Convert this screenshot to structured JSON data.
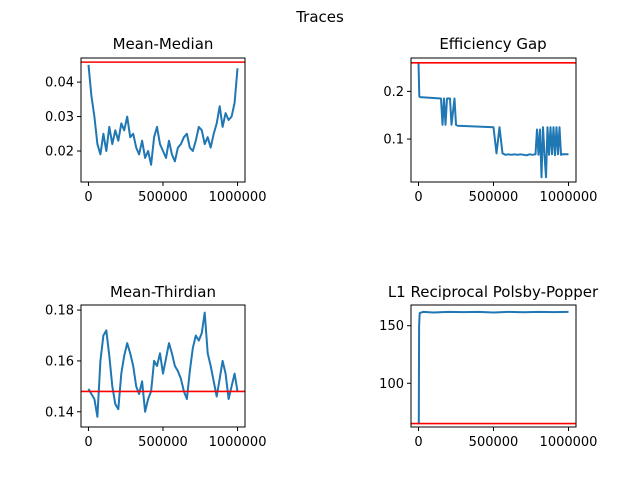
{
  "figure": {
    "title": "Traces"
  },
  "chart_data": [
    {
      "type": "line",
      "title": "Mean-Median",
      "xlabel": "",
      "ylabel": "",
      "xlim": [
        -50000,
        1050000
      ],
      "ylim": [
        0.011,
        0.047
      ],
      "xticks": [
        0,
        500000,
        1000000
      ],
      "xtick_labels": [
        "0",
        "500000",
        "1000000"
      ],
      "yticks": [
        0.02,
        0.03,
        0.04
      ],
      "ytick_labels": [
        "0.02",
        "0.03",
        "0.04"
      ],
      "reference_line": 0.0458,
      "series": [
        {
          "color": "#1f77b4",
          "x": [
            0,
            20000,
            40000,
            60000,
            80000,
            100000,
            120000,
            140000,
            160000,
            180000,
            200000,
            220000,
            240000,
            260000,
            280000,
            300000,
            320000,
            340000,
            360000,
            380000,
            400000,
            420000,
            440000,
            460000,
            480000,
            500000,
            520000,
            540000,
            560000,
            580000,
            600000,
            620000,
            640000,
            660000,
            680000,
            700000,
            720000,
            740000,
            760000,
            780000,
            800000,
            820000,
            840000,
            860000,
            880000,
            900000,
            920000,
            940000,
            960000,
            980000,
            1000000
          ],
          "values": [
            0.045,
            0.036,
            0.03,
            0.022,
            0.019,
            0.025,
            0.02,
            0.027,
            0.022,
            0.026,
            0.023,
            0.028,
            0.026,
            0.03,
            0.024,
            0.025,
            0.021,
            0.019,
            0.023,
            0.018,
            0.02,
            0.016,
            0.024,
            0.027,
            0.022,
            0.02,
            0.018,
            0.023,
            0.019,
            0.017,
            0.021,
            0.022,
            0.024,
            0.025,
            0.021,
            0.02,
            0.023,
            0.027,
            0.026,
            0.022,
            0.024,
            0.021,
            0.025,
            0.028,
            0.033,
            0.027,
            0.031,
            0.029,
            0.03,
            0.034,
            0.044
          ]
        }
      ]
    },
    {
      "type": "line",
      "title": "Efficiency Gap",
      "xlabel": "",
      "ylabel": "",
      "xlim": [
        -50000,
        1050000
      ],
      "ylim": [
        0.01,
        0.27
      ],
      "xticks": [
        0,
        500000,
        1000000
      ],
      "xtick_labels": [
        "0",
        "500000",
        "1000000"
      ],
      "yticks": [
        0.1,
        0.2
      ],
      "ytick_labels": [
        "0.1",
        "0.2"
      ],
      "reference_line": 0.26,
      "series": [
        {
          "color": "#1f77b4",
          "x": [
            0,
            5000,
            10000,
            150000,
            160000,
            170000,
            180000,
            190000,
            210000,
            220000,
            240000,
            250000,
            260000,
            500000,
            520000,
            540000,
            560000,
            580000,
            600000,
            620000,
            640000,
            660000,
            680000,
            700000,
            720000,
            740000,
            760000,
            780000,
            790000,
            800000,
            810000,
            820000,
            830000,
            840000,
            850000,
            860000,
            870000,
            880000,
            890000,
            900000,
            910000,
            920000,
            930000,
            940000,
            950000,
            960000,
            1000000
          ],
          "values": [
            0.26,
            0.19,
            0.188,
            0.185,
            0.13,
            0.185,
            0.13,
            0.185,
            0.185,
            0.13,
            0.185,
            0.13,
            0.128,
            0.125,
            0.07,
            0.125,
            0.07,
            0.067,
            0.068,
            0.067,
            0.068,
            0.067,
            0.068,
            0.067,
            0.066,
            0.068,
            0.067,
            0.068,
            0.12,
            0.067,
            0.12,
            0.02,
            0.125,
            0.067,
            0.02,
            0.125,
            0.067,
            0.125,
            0.068,
            0.125,
            0.066,
            0.125,
            0.068,
            0.125,
            0.067,
            0.068,
            0.068
          ]
        }
      ]
    },
    {
      "type": "line",
      "title": "Mean-Thirdian",
      "xlabel": "",
      "ylabel": "",
      "xlim": [
        -50000,
        1050000
      ],
      "ylim": [
        0.134,
        0.182
      ],
      "xticks": [
        0,
        500000,
        1000000
      ],
      "xtick_labels": [
        "0",
        "500000",
        "1000000"
      ],
      "yticks": [
        0.14,
        0.16,
        0.18
      ],
      "ytick_labels": [
        "0.14",
        "0.16",
        "0.18"
      ],
      "reference_line": 0.148,
      "series": [
        {
          "color": "#1f77b4",
          "x": [
            0,
            20000,
            40000,
            60000,
            80000,
            100000,
            120000,
            140000,
            160000,
            180000,
            200000,
            220000,
            240000,
            260000,
            280000,
            300000,
            320000,
            340000,
            360000,
            380000,
            400000,
            420000,
            440000,
            460000,
            480000,
            500000,
            520000,
            540000,
            560000,
            580000,
            600000,
            620000,
            640000,
            660000,
            680000,
            700000,
            720000,
            740000,
            760000,
            780000,
            800000,
            820000,
            840000,
            860000,
            880000,
            900000,
            920000,
            940000,
            960000,
            980000,
            1000000
          ],
          "values": [
            0.149,
            0.147,
            0.145,
            0.138,
            0.16,
            0.17,
            0.172,
            0.162,
            0.15,
            0.143,
            0.141,
            0.155,
            0.162,
            0.167,
            0.163,
            0.158,
            0.15,
            0.147,
            0.152,
            0.14,
            0.145,
            0.148,
            0.16,
            0.158,
            0.163,
            0.155,
            0.161,
            0.167,
            0.163,
            0.158,
            0.156,
            0.153,
            0.148,
            0.145,
            0.156,
            0.165,
            0.17,
            0.168,
            0.171,
            0.179,
            0.163,
            0.158,
            0.152,
            0.146,
            0.153,
            0.16,
            0.155,
            0.145,
            0.15,
            0.155,
            0.148
          ]
        }
      ]
    },
    {
      "type": "line",
      "title": "L1 Reciprocal Polsby-Popper",
      "xlabel": "",
      "ylabel": "",
      "xlim": [
        -50000,
        1050000
      ],
      "ylim": [
        62,
        168
      ],
      "xticks": [
        0,
        500000,
        1000000
      ],
      "xtick_labels": [
        "0",
        "500000",
        "1000000"
      ],
      "yticks": [
        100,
        150
      ],
      "ytick_labels": [
        "100",
        "150"
      ],
      "reference_line": 65,
      "series": [
        {
          "color": "#1f77b4",
          "x": [
            0,
            2000,
            4000,
            8000,
            30000,
            100000,
            200000,
            300000,
            400000,
            500000,
            600000,
            700000,
            800000,
            900000,
            1000000
          ],
          "values": [
            65,
            65,
            150,
            161,
            162,
            161.5,
            162,
            161.8,
            162,
            161.5,
            162,
            161.7,
            162,
            161.8,
            162
          ]
        }
      ]
    }
  ]
}
